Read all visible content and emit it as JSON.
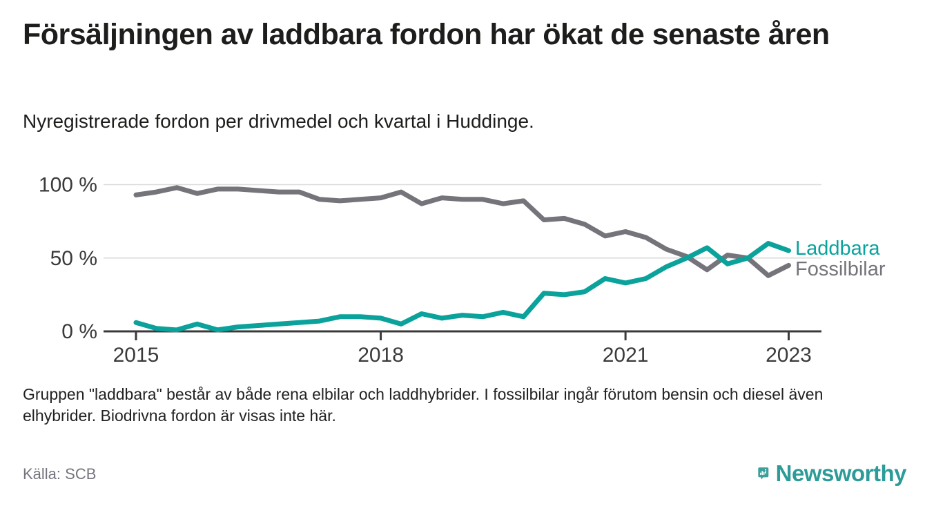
{
  "header": {
    "title": "Försäljningen av laddbara fordon har ökat de senaste åren",
    "subtitle": "Nyregistrerade fordon per drivmedel och kvartal i Huddinge."
  },
  "chart_data": {
    "type": "line",
    "x": [
      "2015 Q1",
      "2015 Q2",
      "2015 Q3",
      "2015 Q4",
      "2016 Q1",
      "2016 Q2",
      "2016 Q3",
      "2016 Q4",
      "2017 Q1",
      "2017 Q2",
      "2017 Q3",
      "2017 Q4",
      "2018 Q1",
      "2018 Q2",
      "2018 Q3",
      "2018 Q4",
      "2019 Q1",
      "2019 Q2",
      "2019 Q3",
      "2019 Q4",
      "2020 Q1",
      "2020 Q2",
      "2020 Q3",
      "2020 Q4",
      "2021 Q1",
      "2021 Q2",
      "2021 Q3",
      "2021 Q4",
      "2022 Q1",
      "2022 Q2",
      "2022 Q3",
      "2022 Q4",
      "2023 Q1"
    ],
    "series": [
      {
        "name": "Laddbara",
        "color": "#0ba29c",
        "values": [
          6,
          2,
          1,
          5,
          1,
          3,
          4,
          5,
          6,
          7,
          10,
          10,
          9,
          5,
          12,
          9,
          11,
          10,
          13,
          10,
          26,
          25,
          27,
          36,
          33,
          36,
          44,
          50,
          57,
          46,
          50,
          60,
          55
        ]
      },
      {
        "name": "Fossilbilar",
        "color": "#74747a",
        "values": [
          93,
          95,
          98,
          94,
          97,
          97,
          96,
          95,
          95,
          90,
          89,
          90,
          91,
          95,
          87,
          91,
          90,
          90,
          87,
          89,
          76,
          77,
          73,
          65,
          68,
          64,
          56,
          51,
          42,
          52,
          50,
          38,
          45
        ]
      }
    ],
    "yticks": [
      {
        "value": 0,
        "label": "0 %"
      },
      {
        "value": 50,
        "label": "50 %"
      },
      {
        "value": 100,
        "label": "100 %"
      }
    ],
    "xticks": [
      {
        "index": 0,
        "label": "2015"
      },
      {
        "index": 12,
        "label": "2018"
      },
      {
        "index": 24,
        "label": "2021"
      },
      {
        "index": 32,
        "label": "2023"
      }
    ],
    "ylim": [
      0,
      100
    ],
    "unit": "%",
    "grid": "horizontal",
    "legend_position": "line-end-labels",
    "colors": {
      "axis": "#3a3a3a",
      "gridline": "#d9d9d9",
      "tick_label": "#3a3a3a"
    }
  },
  "footnote": "Gruppen \"laddbara\" består av både rena elbilar och laddhybrider. I fossilbilar ingår förutom bensin och diesel även elhybrider. Biodrivna fordon är visas inte här.",
  "source": {
    "label": "Källa: SCB"
  },
  "branding": {
    "name": "Newsworthy",
    "color": "#2d9b98",
    "icon": "newsworthy-pin-barchart-icon"
  }
}
